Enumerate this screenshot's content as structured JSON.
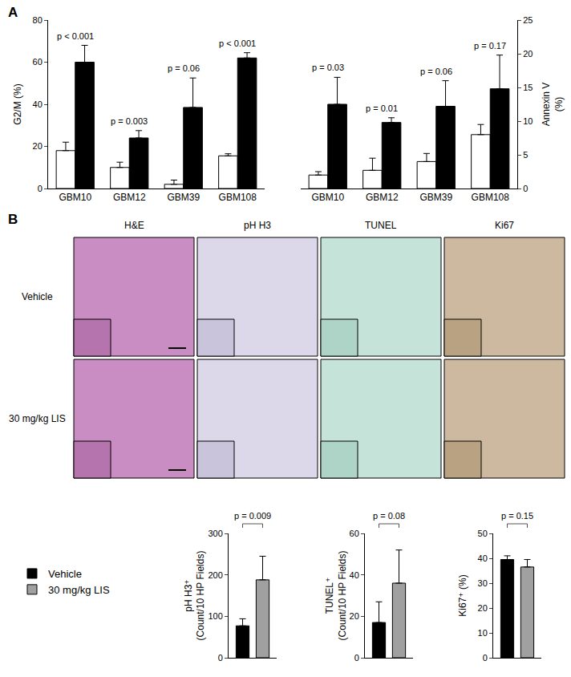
{
  "panel_labels": [
    "A",
    "B"
  ],
  "micrographs": {
    "columns": [
      "H&E",
      "pH H3",
      "TUNEL",
      "Ki67"
    ],
    "rows": [
      "Vehicle",
      "30 mg/kg LIS"
    ]
  },
  "chart_data": [
    {
      "type": "bar",
      "categories": [
        "GBM10",
        "GBM12",
        "GBM39",
        "GBM108"
      ],
      "series": [
        {
          "color": "#ffffff",
          "values": [
            18,
            10,
            2,
            15.5
          ],
          "errors": [
            4,
            2.5,
            2,
            1
          ]
        },
        {
          "color": "#000000",
          "values": [
            60,
            24,
            38.5,
            62
          ],
          "errors": [
            8,
            3.5,
            14,
            2.5
          ]
        }
      ],
      "ylabel": "G2/M (%)",
      "ylim": [
        0,
        80
      ],
      "yticks": [
        0,
        20,
        40,
        60,
        80
      ],
      "grid": false,
      "annotations": [
        "p < 0.001",
        "p = 0.003",
        "p = 0.06",
        "p < 0.001"
      ]
    },
    {
      "type": "bar",
      "categories": [
        "GBM10",
        "GBM12",
        "GBM39",
        "GBM108"
      ],
      "series": [
        {
          "color": "#ffffff",
          "values": [
            2,
            2.7,
            4,
            8
          ],
          "errors": [
            0.5,
            1.8,
            1.2,
            1.5
          ],
          "axis": "y2"
        },
        {
          "color": "#000000",
          "values": [
            12.5,
            9.8,
            12.2,
            14.8
          ],
          "errors": [
            4,
            0.7,
            3.8,
            5
          ],
          "axis": "y2"
        }
      ],
      "y2label": "Annexin V (%)",
      "y2lim": [
        0,
        25
      ],
      "y2ticks": [
        0,
        5,
        10,
        15,
        20,
        25
      ],
      "grid": false,
      "annotations": [
        "p = 0.03",
        "p = 0.01",
        "p = 0.06",
        "p = 0.17"
      ]
    },
    {
      "type": "bar",
      "series": [
        {
          "name": "Vehicle",
          "color": "#000000",
          "values": [
            77
          ],
          "errors": [
            17
          ]
        },
        {
          "name": "30 mg/kg LIS",
          "color": "#a0a0a0",
          "values": [
            188
          ],
          "errors": [
            57
          ]
        }
      ],
      "ylabel": "pH H3⁺ (Count/10 HP Fields)",
      "ylim": [
        0,
        300
      ],
      "yticks": [
        0,
        100,
        200,
        300
      ],
      "grid": false,
      "tick_labels": "y",
      "legend": "left",
      "annotations": [
        "p = 0.009"
      ]
    },
    {
      "type": "bar",
      "series": [
        {
          "name": "Vehicle",
          "color": "#000000",
          "values": [
            17
          ],
          "errors": [
            10
          ]
        },
        {
          "name": "30 mg/kg LIS",
          "color": "#a0a0a0",
          "values": [
            36
          ],
          "errors": [
            16
          ]
        }
      ],
      "ylabel": "TUNEL⁺ (Count/10 HP Fields)",
      "ylim": [
        0,
        60
      ],
      "yticks": [
        0,
        20,
        40,
        60
      ],
      "grid": false,
      "tick_labels": "y",
      "annotations": [
        "p = 0.08"
      ]
    },
    {
      "type": "bar",
      "series": [
        {
          "name": "Vehicle",
          "color": "#000000",
          "values": [
            39.5
          ],
          "errors": [
            1.5
          ]
        },
        {
          "name": "30 mg/kg LIS",
          "color": "#a0a0a0",
          "values": [
            36.5
          ],
          "errors": [
            3
          ]
        }
      ],
      "ylabel": "Ki67⁺ (%)",
      "ylim": [
        0,
        50
      ],
      "yticks": [
        0,
        10,
        20,
        30,
        40,
        50
      ],
      "grid": false,
      "tick_labels": "y",
      "annotations": [
        "p = 0.15"
      ]
    }
  ]
}
